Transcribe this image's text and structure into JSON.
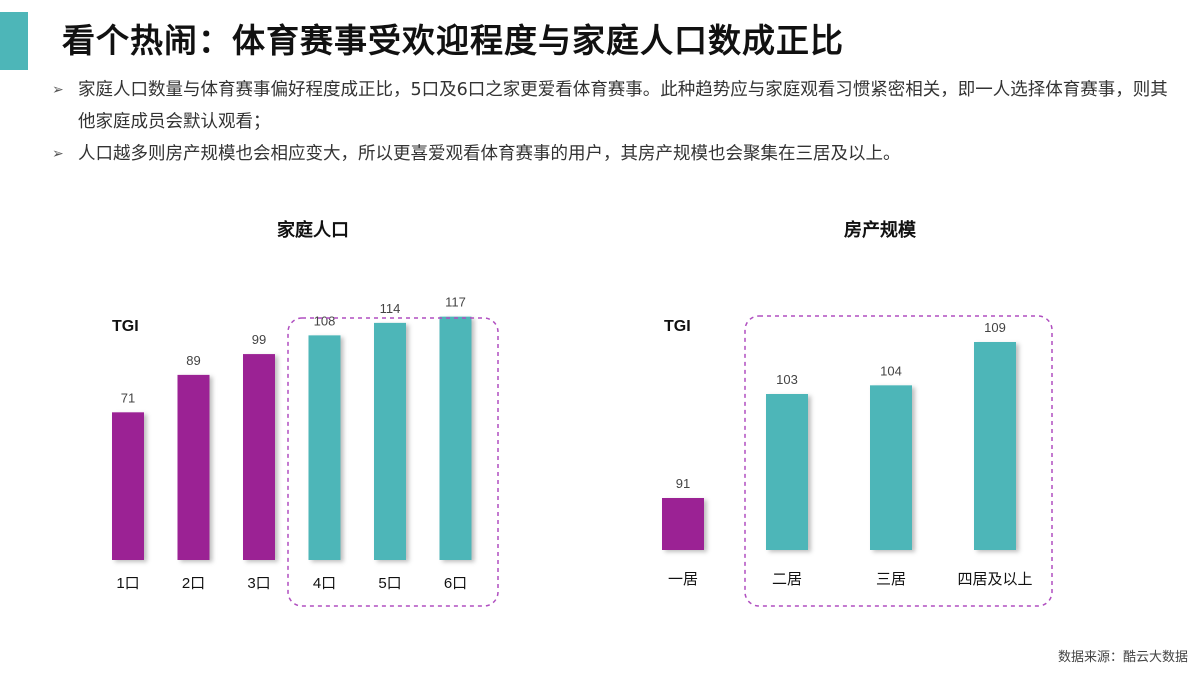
{
  "header": {
    "title": "看个热闹：体育赛事受欢迎程度与家庭人口数成正比",
    "accent_color": "#4db6b8"
  },
  "bullets": [
    {
      "icon": "arrowhead-bullet-icon",
      "text": "家庭人口数量与体育赛事偏好程度成正比，5口及6口之家更爱看体育赛事。此种趋势应与家庭观看习惯紧密相关，即一人选择体育赛事，则其他家庭成员会默认观看；"
    },
    {
      "icon": "arrowhead-bullet-icon",
      "text": "人口越多则房产规模也会相应变大，所以更喜爱观看体育赛事的用户，其房产规模也会聚集在三居及以上。"
    }
  ],
  "colors": {
    "low": "#9b2094",
    "high": "#4db6b8",
    "highlight_box": "#b04fc0"
  },
  "chart_data": [
    {
      "type": "bar",
      "title": "家庭人口",
      "ylabel": "TGI",
      "categories": [
        "1口",
        "2口",
        "3口",
        "4口",
        "5口",
        "6口"
      ],
      "values": [
        71,
        89,
        99,
        108,
        114,
        117
      ],
      "bar_colors": [
        "#9b2094",
        "#9b2094",
        "#9b2094",
        "#4db6b8",
        "#4db6b8",
        "#4db6b8"
      ],
      "highlight_categories": [
        "4口",
        "5口",
        "6口"
      ],
      "ylim": [
        0,
        125
      ],
      "grid": false
    },
    {
      "type": "bar",
      "title": "房产规模",
      "ylabel": "TGI",
      "categories": [
        "一居",
        "二居",
        "三居",
        "四居及以上"
      ],
      "values": [
        91,
        103,
        104,
        109
      ],
      "bar_colors": [
        "#9b2094",
        "#4db6b8",
        "#4db6b8",
        "#4db6b8"
      ],
      "highlight_categories": [
        "二居",
        "三居",
        "四居及以上"
      ],
      "ylim": [
        85,
        112
      ],
      "grid": false
    }
  ],
  "footer": {
    "source": "数据来源：酷云大数据"
  }
}
